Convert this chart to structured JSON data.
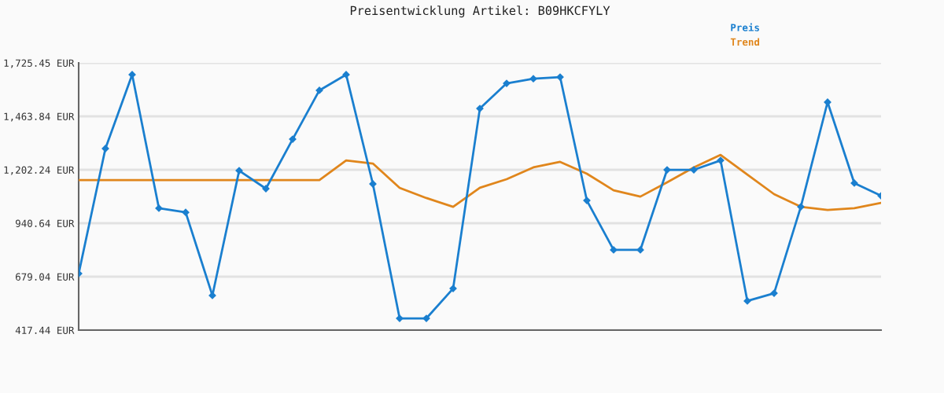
{
  "chart_data": {
    "type": "line",
    "title": "Preisentwicklung Artikel: B09HKCFYLY",
    "categories": [
      null,
      null,
      null,
      null,
      null,
      null,
      null,
      null,
      null,
      null,
      null,
      null,
      null,
      null,
      null,
      null,
      null,
      null,
      null,
      null,
      null,
      null,
      null,
      null,
      null,
      null,
      null,
      null,
      null,
      null,
      null
    ],
    "series": [
      {
        "name": "Preis",
        "color": "#1a7fcf",
        "marker": "diamond",
        "values": [
          694,
          1306,
          1668,
          1014,
          994,
          587,
          1198,
          1110,
          1352,
          1591,
          1668,
          1133,
          475,
          475,
          621,
          1502,
          1625,
          1648,
          1656,
          1052,
          810,
          810,
          1202,
          1202,
          1248,
          560,
          598,
          1021,
          1533,
          1137,
          1075
        ]
      },
      {
        "name": "Trend",
        "color": "#e0861c",
        "marker": "none",
        "values": [
          1152,
          1152,
          1152,
          1152,
          1152,
          1152,
          1152,
          1152,
          1152,
          1152,
          1248,
          1233,
          1114,
          1064,
          1021,
          1114,
          1156,
          1214,
          1241,
          1183,
          1102,
          1071,
          1141,
          1214,
          1275,
          1179,
          1083,
          1021,
          1006,
          1014,
          1040
        ]
      }
    ],
    "ylim": [
      417.44,
      1725.45
    ],
    "yticks": [
      {
        "value": 417.44,
        "label": "417.44 EUR"
      },
      {
        "value": 679.04,
        "label": "679.04 EUR"
      },
      {
        "value": 940.64,
        "label": "940.64 EUR"
      },
      {
        "value": 1202.24,
        "label": "1,202.24 EUR"
      },
      {
        "value": 1463.84,
        "label": "1,463.84 EUR"
      },
      {
        "value": 1725.45,
        "label": "1,725.45 EUR"
      }
    ],
    "grid": "y",
    "legend": "top right",
    "tick_labels": "y"
  }
}
